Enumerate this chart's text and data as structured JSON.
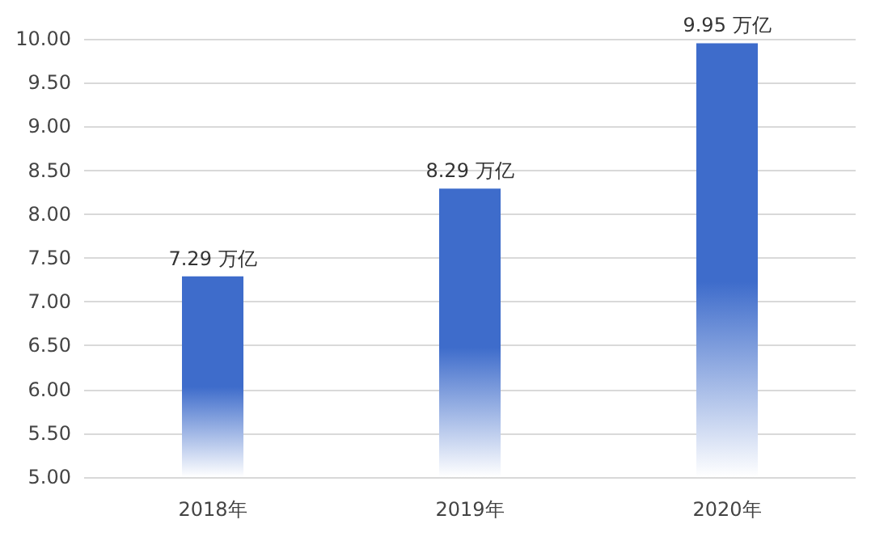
{
  "chart_data": {
    "type": "bar",
    "categories": [
      "2018年",
      "2019年",
      "2020年"
    ],
    "values": [
      7.29,
      8.29,
      9.95
    ],
    "color": "#3e6ccb",
    "value_labels": [
      "7.29 万亿",
      "8.29 万亿",
      "9.95 万亿"
    ],
    "ylim": [
      5,
      10
    ],
    "yticks": [
      {
        "value": 5,
        "label": "5.00"
      },
      {
        "value": 5.5,
        "label": "5.50"
      },
      {
        "value": 6,
        "label": "6.00"
      },
      {
        "value": 6.5,
        "label": "6.50"
      },
      {
        "value": 7,
        "label": "7.00"
      },
      {
        "value": 7.5,
        "label": "7.50"
      },
      {
        "value": 8,
        "label": "8.00"
      },
      {
        "value": 8.5,
        "label": "8.50"
      },
      {
        "value": 9,
        "label": "9.00"
      },
      {
        "value": 9.5,
        "label": "9.50"
      },
      {
        "value": 10,
        "label": "10.00"
      }
    ],
    "grid": "y"
  }
}
